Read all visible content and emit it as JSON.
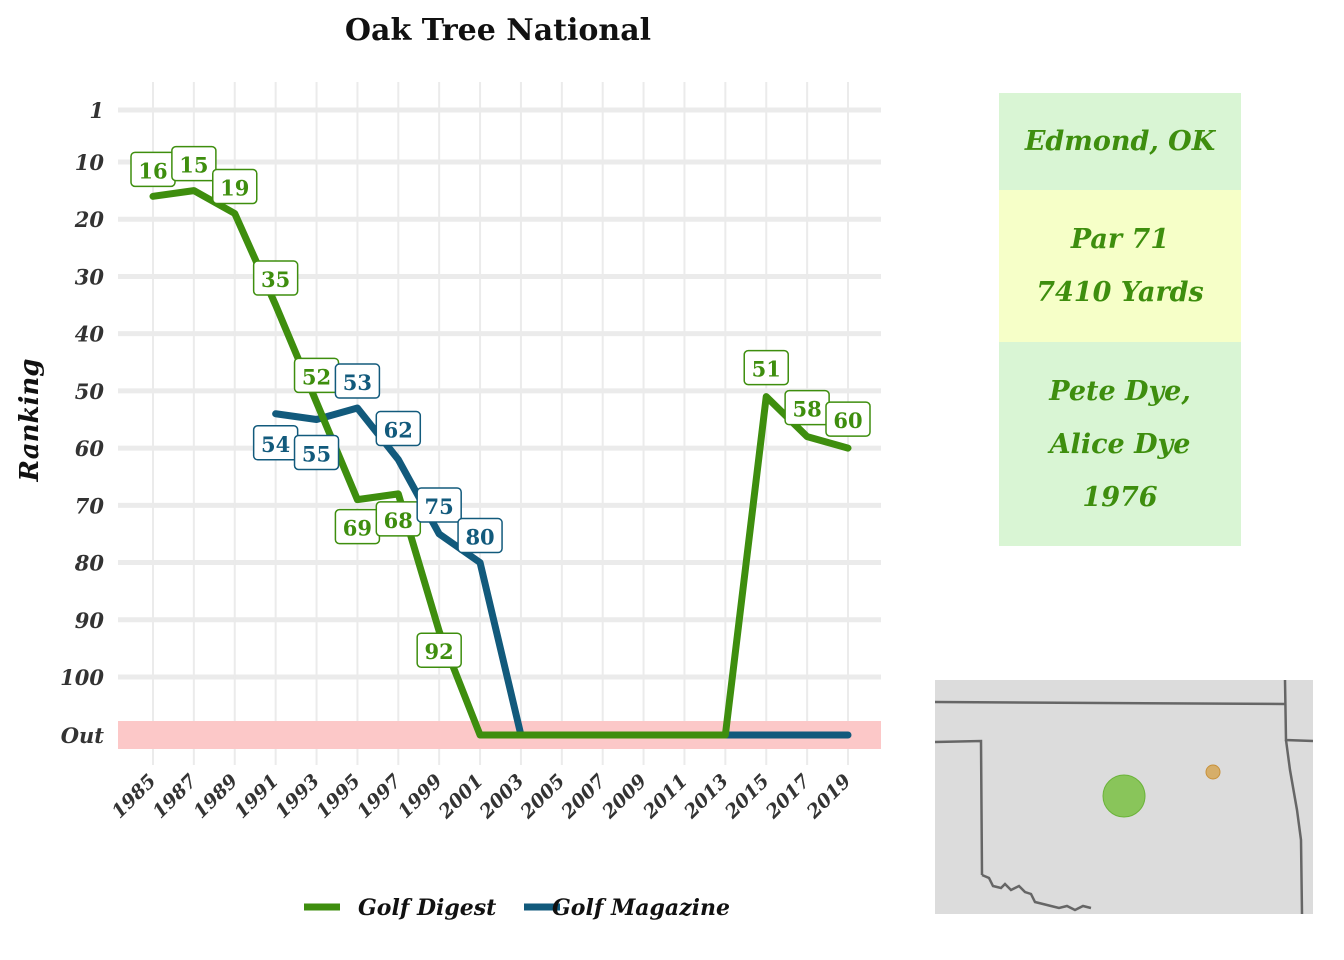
{
  "chart_data": {
    "type": "line",
    "title": "Oak Tree National",
    "ylabel": "Ranking",
    "xlabel": "",
    "x": [
      1985,
      1987,
      1989,
      1991,
      1993,
      1995,
      1997,
      1999,
      2001,
      2003,
      2005,
      2007,
      2009,
      2011,
      2013,
      2015,
      2017,
      2019
    ],
    "x_tick_labels": [
      "1985",
      "1987",
      "1989",
      "1991",
      "1993",
      "1995",
      "1997",
      "1999",
      "2001",
      "2003",
      "2005",
      "2007",
      "2009",
      "2011",
      "2013",
      "2015",
      "2017",
      "2019"
    ],
    "y_ticks": [
      1,
      10,
      20,
      30,
      40,
      50,
      60,
      70,
      80,
      90,
      100
    ],
    "y_tick_labels": [
      "1",
      "10",
      "20",
      "30",
      "40",
      "50",
      "60",
      "70",
      "80",
      "90",
      "100"
    ],
    "y_out_label": "Out",
    "y_out_value": 111,
    "ylim": [
      1,
      111
    ],
    "y_reversed": true,
    "series": [
      {
        "name": "Golf Digest",
        "color": "#3e8e0e",
        "x": [
          1985,
          1987,
          1989,
          1991,
          1993,
          1995,
          1997,
          1999,
          2001,
          2003,
          2005,
          2007,
          2009,
          2011,
          2013,
          2015,
          2017,
          2019
        ],
        "values": [
          16,
          15,
          19,
          35,
          52,
          69,
          68,
          92,
          "Out",
          "Out",
          "Out",
          "Out",
          "Out",
          "Out",
          "Out",
          51,
          58,
          60
        ],
        "labels": [
          {
            "x": 1985,
            "text": "16"
          },
          {
            "x": 1987,
            "text": "15"
          },
          {
            "x": 1989,
            "text": "19"
          },
          {
            "x": 1991,
            "text": "35"
          },
          {
            "x": 1993,
            "text": "52"
          },
          {
            "x": 1995,
            "text": "69"
          },
          {
            "x": 1997,
            "text": "68"
          },
          {
            "x": 1999,
            "text": "92"
          },
          {
            "x": 2015,
            "text": "51"
          },
          {
            "x": 2017,
            "text": "58"
          },
          {
            "x": 2019,
            "text": "60"
          }
        ]
      },
      {
        "name": "Golf Magazine",
        "color": "#125a7c",
        "x": [
          1991,
          1993,
          1995,
          1997,
          1999,
          2001,
          2003,
          2005,
          2007,
          2009,
          2011,
          2013,
          2015,
          2017,
          2019
        ],
        "values": [
          54,
          55,
          53,
          62,
          75,
          80,
          "Out",
          "Out",
          "Out",
          "Out",
          "Out",
          "Out",
          "Out",
          "Out",
          "Out"
        ],
        "labels": [
          {
            "x": 1991,
            "text": "54"
          },
          {
            "x": 1993,
            "text": "55"
          },
          {
            "x": 1995,
            "text": "53"
          },
          {
            "x": 1997,
            "text": "62"
          },
          {
            "x": 1999,
            "text": "75"
          },
          {
            "x": 2001,
            "text": "80"
          }
        ]
      }
    ],
    "out_band_color": "#fcc8c8",
    "grid": true,
    "legend_position": "bottom"
  },
  "info": {
    "location": "Edmond, OK",
    "par": "Par 71",
    "yards": "7410 Yards",
    "architect_1": "Pete Dye,",
    "architect_2": "Alice Dye",
    "year": "1976",
    "colors": {
      "green_cell": "#d9f5d4",
      "yellow_cell": "#f6ffc8",
      "text": "#3e8e0e"
    }
  },
  "map": {
    "fill": "#dcdcdc",
    "markers": [
      {
        "name": "course-marker",
        "color": "#7ac143"
      },
      {
        "name": "secondary-marker",
        "color": "#d4a24c"
      }
    ]
  }
}
